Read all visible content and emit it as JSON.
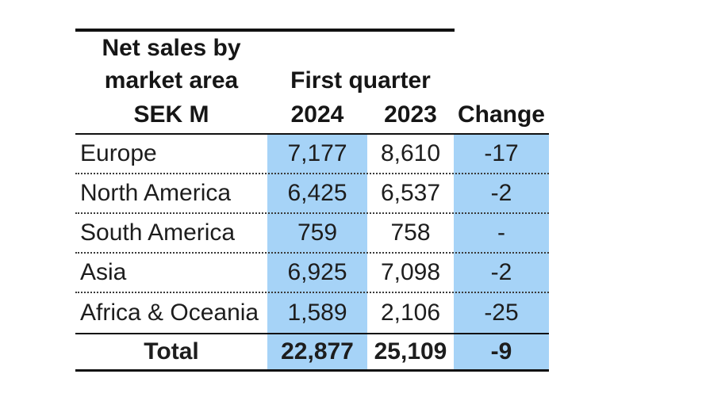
{
  "chart_data": {
    "type": "table",
    "title": "Net sales by market area",
    "unit": "SEK M",
    "period_label": "First quarter",
    "columns": [
      "SEK M",
      "2024",
      "2023",
      "Change"
    ],
    "highlighted_columns": [
      "2024",
      "Change"
    ],
    "rows": [
      {
        "market_area": "Europe",
        "q1_2024": 7177,
        "q1_2023": 8610,
        "change": -17
      },
      {
        "market_area": "North America",
        "q1_2024": 6425,
        "q1_2023": 6537,
        "change": -2
      },
      {
        "market_area": "South America",
        "q1_2024": 759,
        "q1_2023": 758,
        "change": null
      },
      {
        "market_area": "Asia",
        "q1_2024": 6925,
        "q1_2023": 7098,
        "change": -2
      },
      {
        "market_area": "Africa & Oceania",
        "q1_2024": 1589,
        "q1_2023": 2106,
        "change": -25
      }
    ],
    "total": {
      "market_area": "Total",
      "q1_2024": 22877,
      "q1_2023": 25109,
      "change": -9
    }
  },
  "table": {
    "header": {
      "title_line1": "Net sales by",
      "title_line2": "market area",
      "unit_label": "SEK M",
      "group_label": "First quarter",
      "col_2024": "2024",
      "col_2023": "2023",
      "col_change": "Change"
    },
    "rows": [
      {
        "label": "Europe",
        "y2024": "7,177",
        "y2023": "8,610",
        "change": "-17"
      },
      {
        "label": "North America",
        "y2024": "6,425",
        "y2023": "6,537",
        "change": "-2"
      },
      {
        "label": "South America",
        "y2024": "759",
        "y2023": "758",
        "change": "-"
      },
      {
        "label": "Asia",
        "y2024": "6,925",
        "y2023": "7,098",
        "change": "-2"
      },
      {
        "label": "Africa & Oceania",
        "y2024": "1,589",
        "y2023": "2,106",
        "change": "-25"
      }
    ],
    "total": {
      "label": "Total",
      "y2024": "22,877",
      "y2023": "25,109",
      "change": "-9"
    }
  },
  "colors": {
    "highlight_blue": "#a6d3f7",
    "text": "#1d1d1d",
    "line": "#111111"
  }
}
